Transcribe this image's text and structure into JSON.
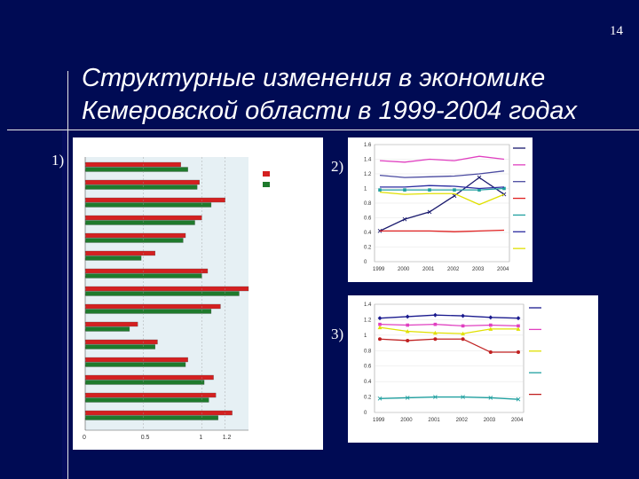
{
  "slide": {
    "page_number": "14",
    "title_line1": "Структурные изменения в экономике",
    "title_line2": "Кемеровской области в 1999-2004 годах",
    "labels": [
      "1)",
      "2)",
      "3)"
    ]
  },
  "chart_data": [
    {
      "type": "bar",
      "orientation": "horizontal",
      "legend_position": "right",
      "series": [
        {
          "color": "#d42020",
          "values": [
            0.82,
            0.98,
            1.2,
            1.0,
            0.86,
            0.6,
            1.05,
            1.4,
            1.16,
            0.45,
            0.62,
            0.88,
            1.1,
            1.12,
            1.26
          ]
        },
        {
          "color": "#1f7a2c",
          "values": [
            0.88,
            0.96,
            1.08,
            0.94,
            0.84,
            0.48,
            1.0,
            1.32,
            1.08,
            0.38,
            0.6,
            0.86,
            1.02,
            1.06,
            1.14
          ]
        }
      ],
      "xlim": [
        0,
        1.4
      ],
      "xticks": [
        "0",
        "0.5",
        "1",
        "1.2"
      ],
      "grid": false
    },
    {
      "type": "line",
      "x": [
        "1999",
        "2000",
        "2001",
        "2002",
        "2003",
        "2004"
      ],
      "ylim": [
        0,
        1.6
      ],
      "yticks": [
        "0",
        "0.2",
        "0.4",
        "0.6",
        "0.8",
        "1",
        "1.2",
        "1.4",
        "1.6"
      ],
      "legend_position": "right",
      "series": [
        {
          "color": "#1a1a6e",
          "marker": "x",
          "values": [
            0.42,
            0.58,
            0.68,
            0.9,
            1.15,
            0.92
          ]
        },
        {
          "color": "#e040c0",
          "marker": "none",
          "values": [
            1.38,
            1.36,
            1.4,
            1.38,
            1.44,
            1.4
          ]
        },
        {
          "color": "#4a4aa0",
          "marker": "none",
          "values": [
            1.18,
            1.15,
            1.16,
            1.17,
            1.2,
            1.24
          ]
        },
        {
          "color": "#e02020",
          "marker": "none",
          "values": [
            0.42,
            0.42,
            0.42,
            0.41,
            0.42,
            0.43
          ]
        },
        {
          "color": "#20a0a0",
          "marker": "square",
          "values": [
            0.98,
            0.98,
            0.98,
            0.98,
            0.98,
            1.0
          ]
        },
        {
          "color": "#2a2aa0",
          "marker": "none",
          "values": [
            1.02,
            1.02,
            1.04,
            1.03,
            1.0,
            1.02
          ]
        },
        {
          "color": "#e0e000",
          "marker": "none",
          "values": [
            0.95,
            0.92,
            0.93,
            0.93,
            0.78,
            0.92
          ]
        }
      ]
    },
    {
      "type": "line",
      "x": [
        "1999",
        "2000",
        "2001",
        "2002",
        "2003",
        "2004"
      ],
      "ylim": [
        0,
        1.4
      ],
      "yticks": [
        "0",
        "0.2",
        "0.4",
        "0.6",
        "0.8",
        "1",
        "1.2",
        "1.4"
      ],
      "legend_position": "right",
      "series": [
        {
          "color": "#1a1a8e",
          "marker": "diamond",
          "values": [
            1.22,
            1.24,
            1.26,
            1.25,
            1.23,
            1.22
          ]
        },
        {
          "color": "#e040c0",
          "marker": "square",
          "values": [
            1.14,
            1.13,
            1.14,
            1.12,
            1.13,
            1.12
          ]
        },
        {
          "color": "#e0e000",
          "marker": "triangle",
          "values": [
            1.1,
            1.05,
            1.03,
            1.02,
            1.08,
            1.08
          ]
        },
        {
          "color": "#20a0a0",
          "marker": "x",
          "values": [
            0.18,
            0.19,
            0.2,
            0.2,
            0.19,
            0.17
          ]
        },
        {
          "color": "#c02020",
          "marker": "circle",
          "values": [
            0.95,
            0.93,
            0.95,
            0.95,
            0.78,
            0.78
          ]
        }
      ]
    }
  ]
}
